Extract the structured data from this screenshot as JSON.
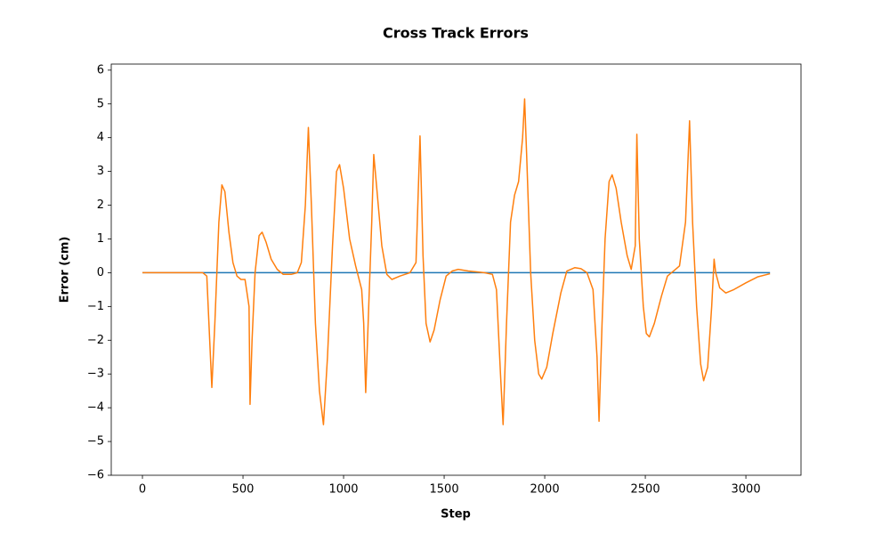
{
  "chart_data": {
    "type": "line",
    "title": "Cross Track Errors",
    "x_label": "Step",
    "y_label": "Error (cm)",
    "xlim": [
      -155,
      3274
    ],
    "ylim": [
      -6,
      6.18
    ],
    "xticks": [
      0,
      500,
      1000,
      1500,
      2000,
      2500,
      3000
    ],
    "yticks": [
      {
        "value": -6,
        "label": "−6"
      },
      {
        "value": -5,
        "label": "−5"
      },
      {
        "value": -4,
        "label": "−4"
      },
      {
        "value": -3,
        "label": "−3"
      },
      {
        "value": -2,
        "label": "−2"
      },
      {
        "value": -1,
        "label": "−1"
      },
      0,
      1,
      2,
      3,
      4,
      5,
      6
    ],
    "grid": false,
    "series": [
      {
        "color": "#1f77b4",
        "x": [
          0,
          3120
        ],
        "values": [
          0,
          0
        ]
      },
      {
        "color": "#ff7f0e",
        "x": [
          0,
          300,
          320,
          345,
          360,
          380,
          395,
          410,
          430,
          450,
          470,
          490,
          510,
          530,
          535,
          545,
          560,
          580,
          595,
          615,
          640,
          670,
          700,
          740,
          770,
          790,
          810,
          825,
          840,
          860,
          880,
          900,
          920,
          945,
          965,
          980,
          1000,
          1030,
          1060,
          1090,
          1100,
          1110,
          1125,
          1140,
          1150,
          1165,
          1190,
          1215,
          1240,
          1280,
          1330,
          1360,
          1380,
          1395,
          1410,
          1430,
          1450,
          1480,
          1510,
          1540,
          1570,
          1620,
          1700,
          1740,
          1760,
          1780,
          1793,
          1810,
          1830,
          1850,
          1870,
          1890,
          1900,
          1910,
          1930,
          1950,
          1970,
          1985,
          2010,
          2040,
          2080,
          2110,
          2150,
          2180,
          2210,
          2240,
          2260,
          2270,
          2285,
          2300,
          2320,
          2335,
          2355,
          2380,
          2410,
          2430,
          2450,
          2458,
          2470,
          2490,
          2505,
          2520,
          2545,
          2580,
          2610,
          2640,
          2670,
          2700,
          2720,
          2735,
          2755,
          2775,
          2790,
          2810,
          2830,
          2842,
          2850,
          2870,
          2900,
          2940,
          3000,
          3060,
          3120
        ],
        "values": [
          0,
          0,
          -0.1,
          -3.4,
          -1.5,
          1.5,
          2.6,
          2.4,
          1.2,
          0.3,
          -0.1,
          -0.2,
          -0.2,
          -1,
          -3.9,
          -2,
          0,
          1.1,
          1.2,
          0.9,
          0.4,
          0.1,
          -0.05,
          -0.05,
          0,
          0.3,
          2,
          4.3,
          2,
          -1.5,
          -3.5,
          -4.5,
          -2.5,
          0.8,
          3,
          3.2,
          2.5,
          1.0,
          0.2,
          -0.5,
          -1.5,
          -3.55,
          -1,
          1.5,
          3.5,
          2.5,
          0.8,
          -0.05,
          -0.2,
          -0.1,
          0,
          0.3,
          4.05,
          0.5,
          -1.5,
          -2.05,
          -1.7,
          -0.8,
          -0.1,
          0.05,
          0.1,
          0.05,
          0,
          -0.05,
          -0.5,
          -3,
          -4.5,
          -1.5,
          1.5,
          2.3,
          2.7,
          4.0,
          5.15,
          3.5,
          0,
          -2,
          -3.0,
          -3.15,
          -2.8,
          -1.8,
          -0.6,
          0.05,
          0.15,
          0.12,
          0.0,
          -0.5,
          -2.5,
          -4.4,
          -1.5,
          1.0,
          2.7,
          2.9,
          2.5,
          1.5,
          0.5,
          0.1,
          0.8,
          4.1,
          1.0,
          -1.0,
          -1.8,
          -1.9,
          -1.5,
          -0.7,
          -0.1,
          0.05,
          0.2,
          1.5,
          4.5,
          1.5,
          -1.0,
          -2.7,
          -3.2,
          -2.8,
          -1.0,
          0.4,
          0.0,
          -0.45,
          -0.6,
          -0.5,
          -0.3,
          -0.12,
          -0.03
        ]
      }
    ]
  }
}
